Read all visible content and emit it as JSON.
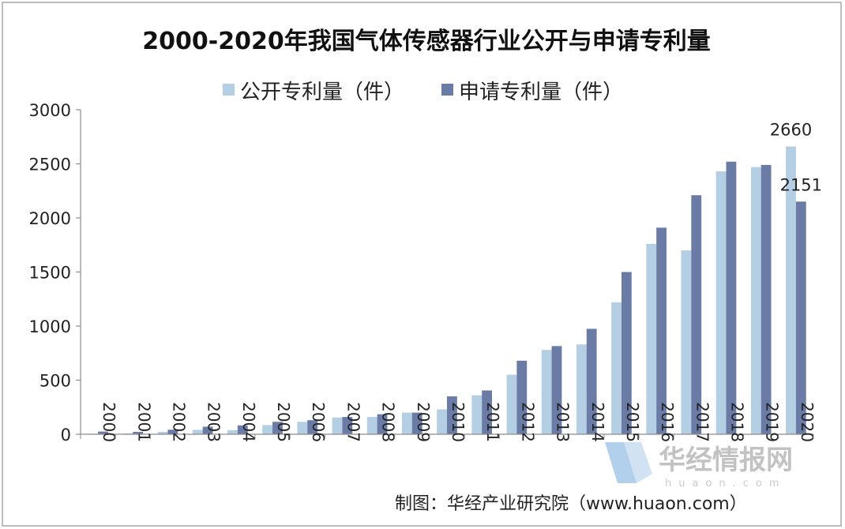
{
  "chart_data": {
    "type": "bar",
    "title": "2000-2020年我国气体传感器行业公开与申请专利量",
    "categories": [
      "2000",
      "2001",
      "2002",
      "2003",
      "2004",
      "2005",
      "2006",
      "2007",
      "2008",
      "2009",
      "2010",
      "2011",
      "2012",
      "2013",
      "2014",
      "2015",
      "2016",
      "2017",
      "2018",
      "2019",
      "2020"
    ],
    "series": [
      {
        "name": "公开专利量（件）",
        "color": "#b4cee3",
        "values": [
          5,
          8,
          22,
          40,
          38,
          85,
          115,
          155,
          160,
          200,
          230,
          360,
          550,
          780,
          830,
          1220,
          1760,
          1700,
          2430,
          2470,
          2660
        ]
      },
      {
        "name": "申请专利量（件）",
        "color": "#6a7ba6",
        "values": [
          25,
          22,
          42,
          70,
          82,
          115,
          130,
          160,
          185,
          200,
          350,
          405,
          680,
          815,
          975,
          1500,
          1910,
          2210,
          2520,
          2490,
          2151
        ]
      }
    ],
    "data_labels": [
      {
        "category": "2020",
        "series": 0,
        "text": "2660"
      },
      {
        "category": "2020",
        "series": 1,
        "text": "2151"
      }
    ],
    "ylim": [
      0,
      3000
    ],
    "yticks": [
      0,
      500,
      1000,
      1500,
      2000,
      2500,
      3000
    ],
    "xlabel": "",
    "ylabel": "",
    "legend_position": "top-center",
    "grid": false
  },
  "source_note": "制图：华经产业研究院（www.huaon.com）",
  "watermark": {
    "brand": "华经情报网",
    "url": "huaon.com",
    "logo_color": "#7fb0e0"
  }
}
